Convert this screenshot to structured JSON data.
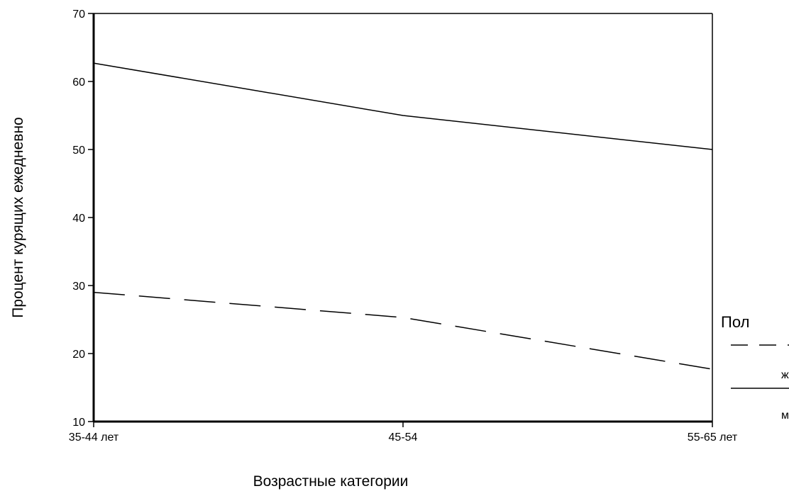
{
  "chart_data": {
    "type": "line",
    "categories": [
      "35-44 лет",
      "45-54",
      "55-65 лет"
    ],
    "series": [
      {
        "name": "ж",
        "values": [
          29,
          25.3,
          17.7
        ],
        "line_style": "dashed",
        "color": "#000000"
      },
      {
        "name": "м",
        "values": [
          62.7,
          55,
          50
        ],
        "line_style": "solid",
        "color": "#000000"
      }
    ],
    "xlabel": "Возрастные категории",
    "ylabel": "Процент курящих ежедневно",
    "ylim": [
      10,
      70
    ],
    "yticks": [
      "10",
      "20",
      "30",
      "40",
      "50",
      "60",
      "70"
    ],
    "grid": false,
    "legend": {
      "title": "Пол",
      "placement": "right"
    }
  }
}
